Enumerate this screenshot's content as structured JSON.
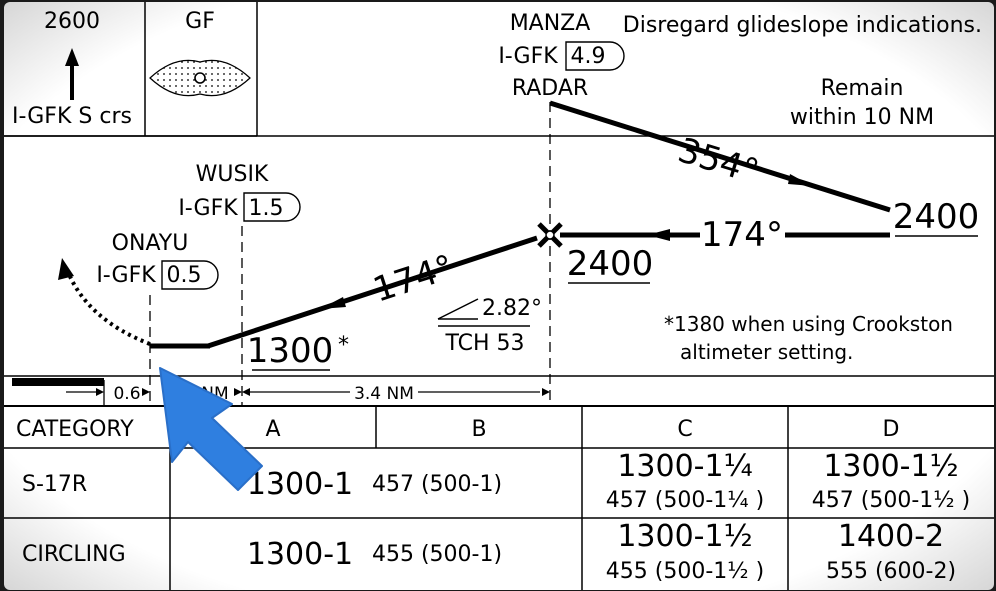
{
  "header": {
    "msa_altitude": "2600",
    "course_label": "I-GFK S crs",
    "airport_id": "GF"
  },
  "note_top": "Disregard glideslope indications.",
  "fixes": {
    "manza": {
      "name": "MANZA",
      "ident": "I-GFK",
      "dme": "4.9",
      "extra": "RADAR"
    },
    "wusik": {
      "name": "WUSIK",
      "ident": "I-GFK",
      "dme": "1.5"
    },
    "onayu": {
      "name": "ONAYU",
      "ident": "I-GFK",
      "dme": "0.5"
    }
  },
  "remain": {
    "line1": "Remain",
    "line2": "within 10 NM"
  },
  "courses": {
    "outbound": "354°",
    "inbound_upper": "174°",
    "inbound_lower": "174°"
  },
  "altitudes": {
    "holding": "2400",
    "fix": "2400",
    "final": "1300",
    "final_mark": "*"
  },
  "glidepath": {
    "angle": "2.82°",
    "tch": "TCH 53"
  },
  "note_alt": {
    "line1": "*1380 when using Crookston",
    "line2": "altimeter setting."
  },
  "distances": {
    "d1": "0.6",
    "d2": "NM",
    "d3": "3.4 NM"
  },
  "minimums": {
    "header": [
      "CATEGORY",
      "A",
      "B",
      "C",
      "D"
    ],
    "rows": [
      {
        "label": "S-17R",
        "ab_main": "1300-1",
        "ab_sub": "457 (500-1)",
        "c_main": "1300-1¼",
        "c_sub": "457 (500-1¼ )",
        "d_main": "1300-1½",
        "d_sub": "457 (500-1½ )"
      },
      {
        "label": "CIRCLING",
        "ab_main": "1300-1",
        "ab_sub": "455 (500-1)",
        "c_main": "1300-1½",
        "c_sub": "455 (500-1½ )",
        "d_main": "1400-2",
        "d_sub": "555 (600-2)"
      }
    ]
  },
  "colors": {
    "cursor": "#2f7fe0",
    "paper": "#ffffff",
    "ink": "#000000"
  },
  "cursor_icon": "mouse-pointer-arrow-icon"
}
